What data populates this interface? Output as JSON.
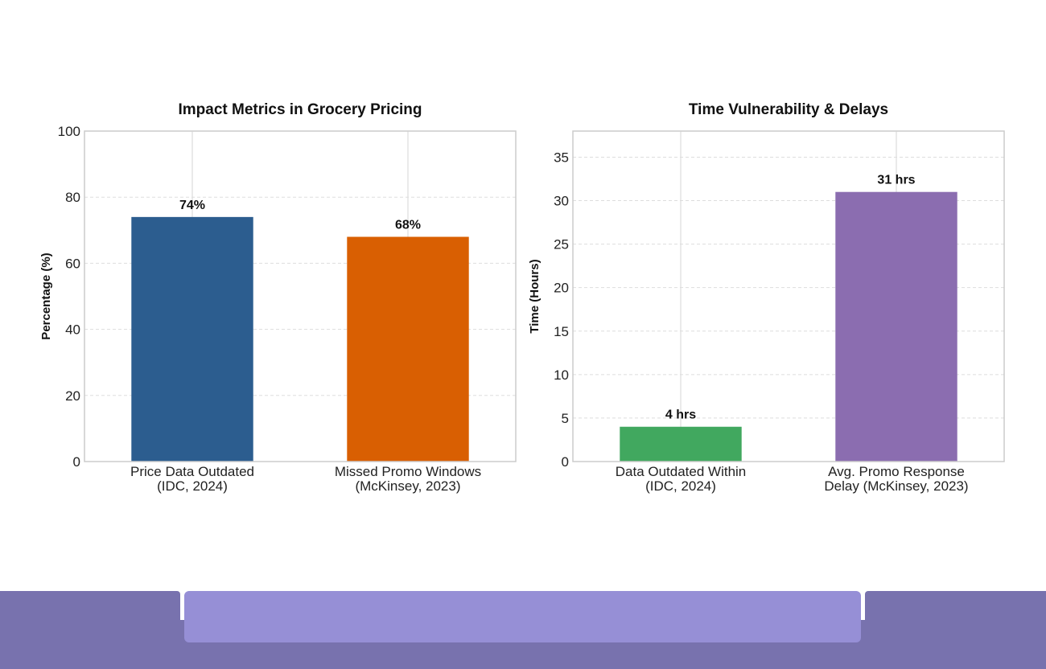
{
  "chart_data": [
    {
      "type": "bar",
      "title": "Impact Metrics in Grocery Pricing",
      "xlabel": "",
      "ylabel": "Percentage (%)",
      "categories": [
        "Price Data Outdated\n(IDC, 2024)",
        "Missed Promo Windows\n(McKinsey, 2023)"
      ],
      "values": [
        74,
        68
      ],
      "data_labels": [
        "74%",
        "68%"
      ],
      "colors": [
        "#2c5d8f",
        "#d95f02"
      ],
      "ylim": [
        0,
        100
      ],
      "yticks": [
        0,
        20,
        40,
        60,
        80,
        100
      ],
      "grid": true
    },
    {
      "type": "bar",
      "title": "Time Vulnerability & Delays",
      "xlabel": "",
      "ylabel": "Time (Hours)",
      "categories": [
        "Data Outdated Within\n(IDC, 2024)",
        "Avg. Promo Response\nDelay (McKinsey, 2023)"
      ],
      "values": [
        4,
        31
      ],
      "data_labels": [
        "4 hrs",
        "31 hrs"
      ],
      "colors": [
        "#41a85f",
        "#8b6db0"
      ],
      "ylim": [
        0,
        38
      ],
      "yticks": [
        0,
        5,
        10,
        15,
        20,
        25,
        30,
        35
      ],
      "grid": true
    }
  ],
  "colors": {
    "footer_bar": "#7872ae",
    "footer_panel": "#968fd6"
  }
}
